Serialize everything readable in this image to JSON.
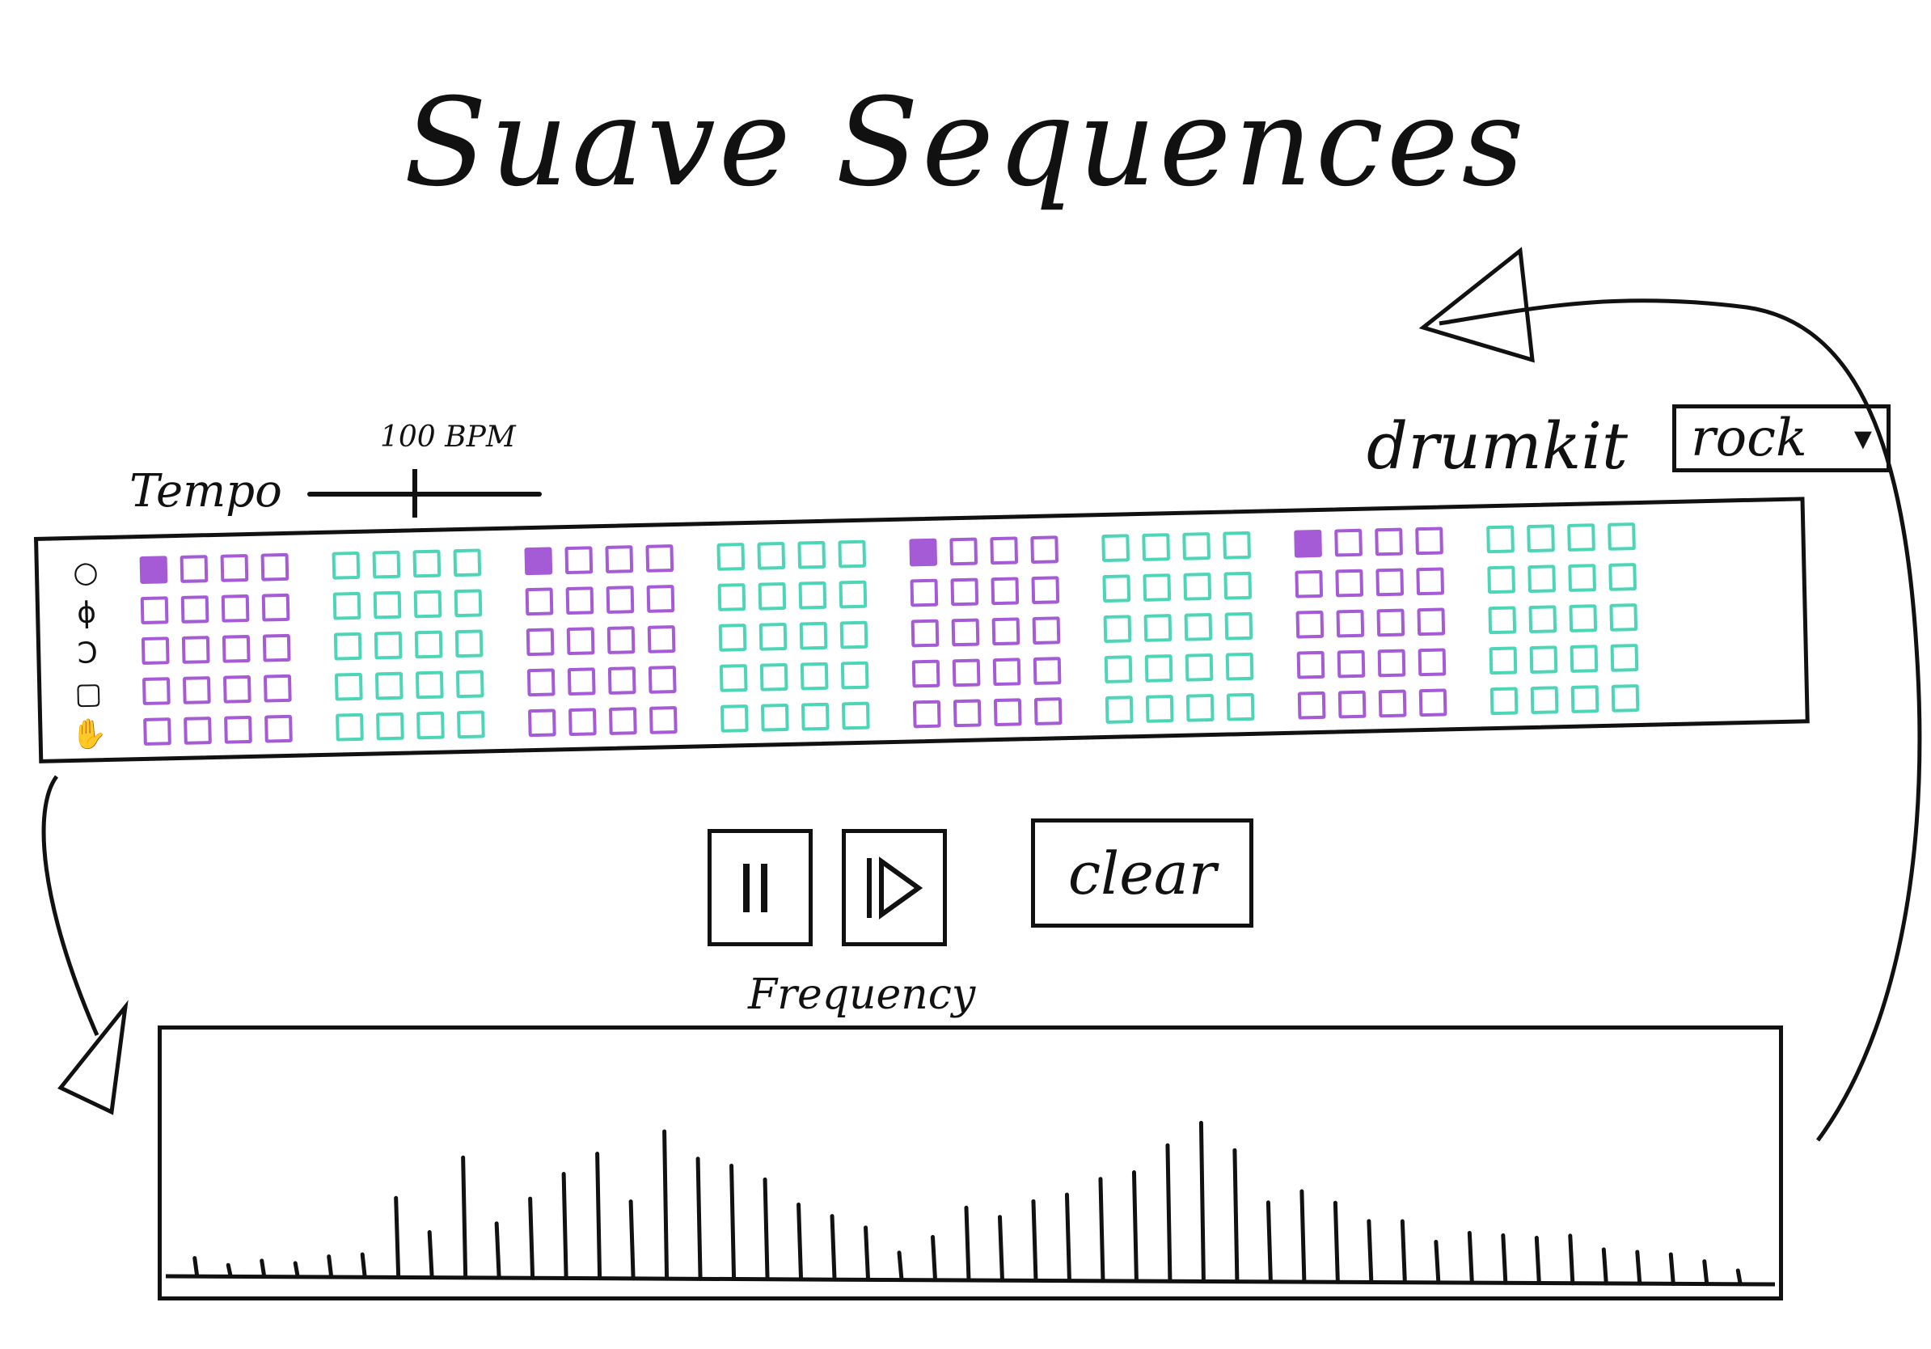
{
  "title": "Suave Sequences",
  "tempo": {
    "label": "Tempo",
    "value_label": "100 BPM",
    "bpm": 100
  },
  "drumkit": {
    "label": "drumkit",
    "selected": "rock",
    "arrow_icon": "chevron-down-icon"
  },
  "instruments": [
    {
      "name": "kick",
      "icon": "circle-icon"
    },
    {
      "name": "snare",
      "icon": "snare-icon"
    },
    {
      "name": "hihat",
      "icon": "cymbal-icon"
    },
    {
      "name": "tom",
      "icon": "square-icon"
    },
    {
      "name": "clap",
      "icon": "hand-icon"
    }
  ],
  "step_groups": [
    {
      "color": "purple",
      "active": [
        [
          0,
          0
        ]
      ]
    },
    {
      "color": "teal",
      "active": []
    },
    {
      "color": "purple",
      "active": [
        [
          0,
          0
        ]
      ]
    },
    {
      "color": "teal",
      "active": []
    },
    {
      "color": "purple",
      "active": [
        [
          0,
          0
        ]
      ]
    },
    {
      "color": "teal",
      "active": []
    },
    {
      "color": "purple",
      "active": [
        [
          0,
          0
        ]
      ]
    },
    {
      "color": "teal",
      "active": []
    }
  ],
  "colors": {
    "purple": "#a55ad6",
    "teal": "#4cd6b7"
  },
  "transport": {
    "pause_icon": "pause-icon",
    "play_icon": "play-icon"
  },
  "clear_button": {
    "label": "clear"
  },
  "frequency": {
    "label": "Frequency",
    "bar_levels": [
      0.08,
      0.05,
      0.07,
      0.06,
      0.09,
      0.1,
      0.35,
      0.2,
      0.53,
      0.24,
      0.35,
      0.46,
      0.55,
      0.34,
      0.65,
      0.53,
      0.5,
      0.44,
      0.33,
      0.28,
      0.23,
      0.12,
      0.19,
      0.32,
      0.28,
      0.35,
      0.38,
      0.45,
      0.48,
      0.6,
      0.7,
      0.58,
      0.35,
      0.4,
      0.35,
      0.27,
      0.27,
      0.18,
      0.22,
      0.21,
      0.2,
      0.21,
      0.15,
      0.14,
      0.13,
      0.1,
      0.06
    ]
  }
}
